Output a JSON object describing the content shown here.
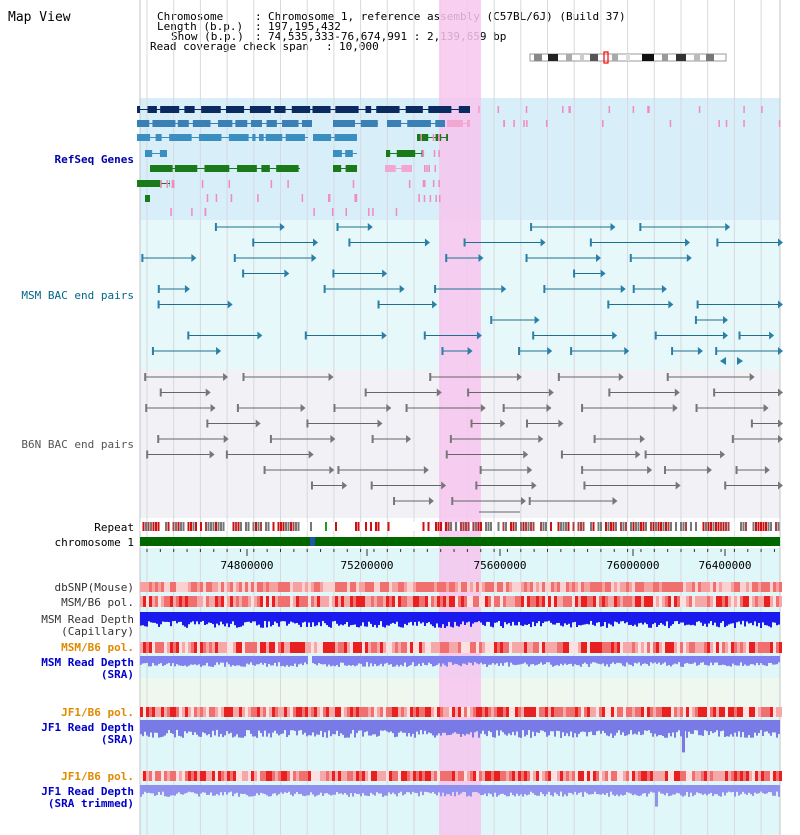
{
  "title": "Map View",
  "info": {
    "chromosome_key": "Chromosome",
    "chromosome_val": "Chromosome 1, reference assembly (C57BL/6J) (Build 37)",
    "length_key": "Length (b.p.)",
    "length_val": "197,195,432",
    "show_key": "Show (b.p.)",
    "show_val": "74,535,333-76,674,991 : 2,139,659 bp",
    "coverage_key": "Read coverage check span",
    "coverage_val": "10,000"
  },
  "tracks": {
    "refseq": "RefSeq Genes",
    "msm_bac": "MSM BAC end pairs",
    "b6n_bac": "B6N BAC end pairs",
    "repeat": "Repeat",
    "chromosome": "chromosome 1",
    "dbsnp": "dbSNP(Mouse)",
    "msm_b6_pol": "MSM/B6 pol.",
    "msm_depth_cap_1": "MSM Read Depth",
    "msm_depth_cap_2": "(Capillary)",
    "msm_b6_pol_2": "MSM/B6 pol.",
    "msm_depth_sra_1": "MSM Read Depth",
    "msm_depth_sra_2": "(SRA)",
    "jf1_b6_pol": "JF1/B6 pol.",
    "jf1_depth_sra_1": "JF1 Read Depth",
    "jf1_depth_sra_2": "(SRA)",
    "jf1_b6_pol_2": "JF1/B6 pol.",
    "jf1_depth_trim_1": "JF1 Read Depth",
    "jf1_depth_trim_2": "(SRA trimmed)"
  },
  "ruler": {
    "ticks": [
      "74800000",
      "75200000",
      "75600000",
      "76000000",
      "76400000"
    ]
  },
  "colors": {
    "refseq_label": "#0000aa",
    "msm_bac_label": "#006688",
    "b6n_bac_label": "#555555",
    "pol_label_orange": "#e08a00",
    "depth_label": "#0000cc",
    "highlight": "#f7c6ee",
    "chromosome_bar": "#006600"
  }
}
